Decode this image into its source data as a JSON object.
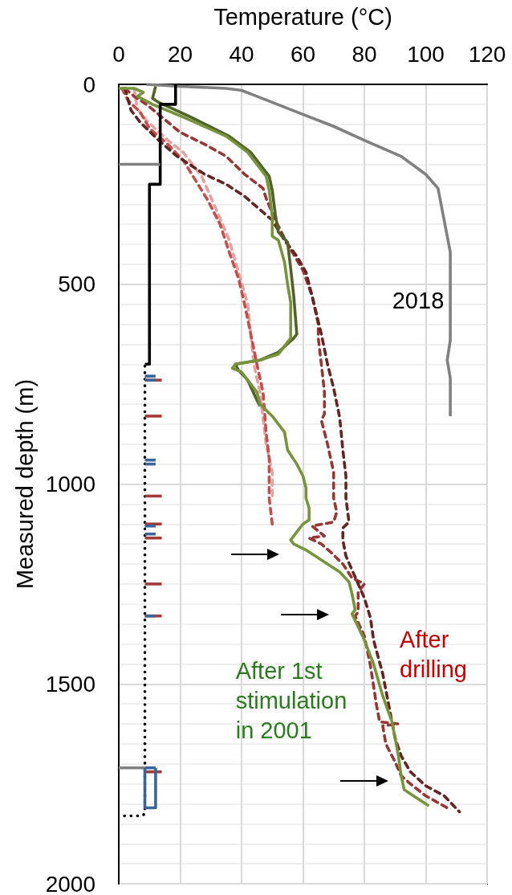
{
  "chart_data": {
    "type": "line",
    "xlabel": "Temperature (°C)",
    "ylabel": "Measured depth (m)",
    "xlim": [
      0,
      120
    ],
    "xticks": [
      0,
      20,
      40,
      60,
      80,
      100,
      120
    ],
    "ylim": [
      2000,
      0
    ],
    "yticks": [
      0,
      500,
      1000,
      1500,
      2000
    ],
    "grid": true,
    "annotations": [
      "2018",
      "After\ndrilling",
      "After 1st\nstimulation\nin 2001"
    ],
    "series": [
      {
        "color": "#e6a09e",
        "line_style": "dashed",
        "x": [
          5,
          6,
          9,
          16,
          21,
          27,
          31,
          36,
          39,
          42,
          43,
          44,
          46,
          47,
          48,
          50,
          50
        ],
        "values": [
          10,
          60,
          90,
          140,
          170,
          230,
          300,
          390,
          470,
          550,
          625,
          700,
          770,
          835,
          900,
          970,
          1030
        ]
      },
      {
        "color": "#c0504d",
        "line_style": "dashed",
        "x": [
          1,
          3,
          7,
          10,
          16,
          21,
          25,
          29,
          33,
          36,
          39,
          41,
          43,
          45,
          47,
          48,
          49,
          49,
          50
        ],
        "values": [
          10,
          40,
          70,
          110,
          150,
          190,
          240,
          290,
          350,
          420,
          485,
          550,
          625,
          700,
          770,
          870,
          935,
          1035,
          1100
        ]
      },
      {
        "color": "#953735",
        "line_style": "dashed",
        "x": [
          2,
          5,
          9,
          20,
          28,
          35,
          41,
          47,
          48,
          51,
          55,
          60,
          63,
          65,
          65,
          66,
          67,
          67,
          66,
          68,
          70,
          70,
          71,
          70,
          63,
          67,
          62,
          66,
          69,
          73,
          76,
          80,
          78,
          78,
          77,
          80,
          82,
          84,
          85,
          91,
          86,
          87,
          90,
          92,
          95,
          100,
          107
        ],
        "values": [
          10,
          30,
          50,
          120,
          150,
          180,
          225,
          260,
          285,
          340,
          400,
          465,
          530,
          600,
          635,
          700,
          770,
          825,
          840,
          900,
          970,
          1035,
          1070,
          1095,
          1105,
          1130,
          1135,
          1150,
          1170,
          1200,
          1235,
          1250,
          1270,
          1320,
          1330,
          1380,
          1455,
          1555,
          1595,
          1600,
          1605,
          1650,
          1695,
          1730,
          1750,
          1780,
          1810
        ]
      },
      {
        "color": "#632523",
        "line_style": "dashed",
        "x": [
          2,
          4,
          7,
          13,
          19,
          28,
          35,
          41,
          47,
          50,
          54,
          58,
          61,
          63,
          66,
          68,
          70,
          72,
          73,
          74,
          74,
          75,
          73,
          73,
          74,
          76,
          78,
          80,
          82,
          83,
          86,
          88,
          90,
          92,
          95,
          100,
          106,
          111
        ],
        "values": [
          10,
          65,
          95,
          140,
          180,
          225,
          250,
          280,
          320,
          340,
          390,
          430,
          470,
          530,
          625,
          700,
          760,
          835,
          915,
          980,
          1035,
          1095,
          1110,
          1140,
          1180,
          1215,
          1250,
          1285,
          1335,
          1390,
          1475,
          1555,
          1635,
          1680,
          1720,
          1755,
          1780,
          1820
        ]
      },
      {
        "color": "#4f6228",
        "line_style": "solid",
        "x": [
          12,
          11,
          13,
          23,
          36,
          43,
          47,
          49,
          50,
          51,
          52,
          55,
          56,
          57,
          58,
          57,
          52,
          46,
          38,
          39,
          42,
          45,
          46
        ],
        "values": [
          5,
          35,
          45,
          80,
          130,
          170,
          210,
          230,
          265,
          325,
          370,
          395,
          460,
          530,
          625,
          635,
          670,
          690,
          700,
          715,
          740,
          790,
          805
        ]
      },
      {
        "color": "#77933c",
        "line_style": "solid",
        "x": [
          0,
          5,
          8,
          6,
          11,
          22,
          35,
          42,
          46,
          48,
          49,
          50,
          50,
          52,
          54,
          55,
          56,
          56,
          56,
          52,
          46,
          38,
          37,
          40,
          43,
          45,
          46,
          50,
          54,
          55,
          58,
          60,
          61,
          61,
          62,
          62,
          60,
          58,
          56,
          57,
          61,
          67,
          72,
          75,
          76,
          77,
          76,
          80,
          83,
          86,
          89,
          91,
          92,
          93,
          101
        ],
        "values": [
          10,
          10,
          20,
          30,
          50,
          85,
          130,
          170,
          210,
          230,
          265,
          330,
          380,
          390,
          445,
          500,
          545,
          600,
          635,
          675,
          690,
          700,
          710,
          720,
          750,
          770,
          800,
          830,
          870,
          915,
          950,
          980,
          1010,
          1035,
          1060,
          1090,
          1100,
          1120,
          1140,
          1150,
          1165,
          1195,
          1220,
          1245,
          1275,
          1315,
          1325,
          1390,
          1450,
          1530,
          1595,
          1675,
          1730,
          1765,
          1805
        ]
      },
      {
        "color": "#808080",
        "line_style": "solid",
        "x": [
          9,
          20,
          35,
          40,
          45,
          60,
          70,
          80,
          92,
          100,
          104,
          106,
          108,
          108,
          108,
          108,
          107,
          108,
          108
        ],
        "values": [
          0,
          5,
          10,
          15,
          30,
          75,
          105,
          140,
          180,
          225,
          260,
          340,
          420,
          500,
          580,
          640,
          690,
          735,
          830
        ]
      },
      {
        "color": "#000000",
        "line_style": "solid",
        "x": [
          18.5,
          18.5,
          13.5,
          13.5,
          10,
          10,
          8.5
        ],
        "values": [
          0,
          50,
          50,
          250,
          250,
          700,
          700
        ]
      },
      {
        "color": "#000000",
        "line_style": "dotted",
        "x": [
          8.5,
          8.5,
          7.5,
          0.5
        ],
        "values": [
          705,
          1825,
          1830,
          1830
        ]
      },
      {
        "color": "#808080",
        "line_style": "solid",
        "x": [
          0,
          13.5
        ],
        "values": [
          200,
          200
        ]
      },
      {
        "color": "#808080",
        "line_style": "solid",
        "x": [
          0,
          8.5
        ],
        "values": [
          1710,
          1710
        ]
      },
      {
        "color": "#a33a3a",
        "line_style": "solid",
        "x": [
          8.5,
          14
        ],
        "values": [
          740,
          740
        ]
      },
      {
        "color": "#a33a3a",
        "line_style": "solid",
        "x": [
          8.5,
          14
        ],
        "values": [
          830,
          830
        ]
      },
      {
        "color": "#a33a3a",
        "line_style": "solid",
        "x": [
          8.5,
          14
        ],
        "values": [
          1030,
          1030
        ]
      },
      {
        "color": "#a33a3a",
        "line_style": "solid",
        "x": [
          8.5,
          14
        ],
        "values": [
          1100,
          1100
        ]
      },
      {
        "color": "#a33a3a",
        "line_style": "solid",
        "x": [
          8.5,
          14
        ],
        "values": [
          1135,
          1135
        ]
      },
      {
        "color": "#a33a3a",
        "line_style": "solid",
        "x": [
          8.5,
          14
        ],
        "values": [
          1250,
          1250
        ]
      },
      {
        "color": "#a33a3a",
        "line_style": "solid",
        "x": [
          8.5,
          14
        ],
        "values": [
          1330,
          1330
        ]
      },
      {
        "color": "#a33a3a",
        "line_style": "solid",
        "x": [
          8.5,
          14
        ],
        "values": [
          1720,
          1720
        ]
      },
      {
        "color": "#3a6498",
        "line_style": "solid",
        "x": [
          8.5,
          12
        ],
        "values": [
          730,
          730
        ]
      },
      {
        "color": "#3a6498",
        "line_style": "solid",
        "x": [
          8.5,
          12
        ],
        "values": [
          740,
          740
        ]
      },
      {
        "color": "#3a6498",
        "line_style": "solid",
        "x": [
          8.5,
          12
        ],
        "values": [
          940,
          940
        ]
      },
      {
        "color": "#3a6498",
        "line_style": "solid",
        "x": [
          8.5,
          12
        ],
        "values": [
          950,
          950
        ]
      },
      {
        "color": "#3a6498",
        "line_style": "solid",
        "x": [
          8.5,
          12
        ],
        "values": [
          1105,
          1105
        ]
      },
      {
        "color": "#3a6498",
        "line_style": "solid",
        "x": [
          8.5,
          12
        ],
        "values": [
          1125,
          1125
        ]
      },
      {
        "color": "#3a6498",
        "line_style": "solid",
        "x": [
          8.5,
          12
        ],
        "values": [
          1330,
          1330
        ]
      },
      {
        "color": "#3a6498",
        "line_style": "solid",
        "x": [
          8.5,
          8.5,
          12,
          12
        ],
        "values": [
          1710,
          1810,
          1810,
          1710
        ]
      },
      {
        "color": "#3a6498",
        "line_style": "solid",
        "x": [
          8.5,
          12
        ],
        "values": [
          1710,
          1710
        ]
      }
    ]
  }
}
